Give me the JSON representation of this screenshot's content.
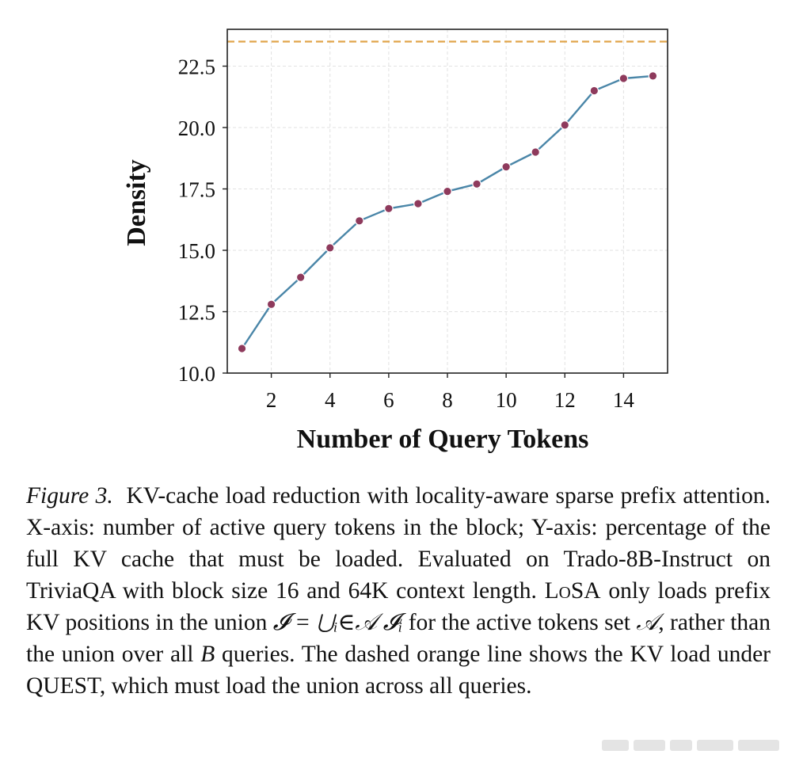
{
  "chart_data": {
    "type": "line",
    "title": "",
    "xlabel": "Number of Query Tokens",
    "ylabel": "Density",
    "xlim": [
      0.5,
      15.5
    ],
    "ylim": [
      10.0,
      24.0
    ],
    "xticks": [
      2,
      4,
      6,
      8,
      10,
      12,
      14
    ],
    "xtick_labels": [
      "2",
      "4",
      "6",
      "8",
      "10",
      "12",
      "14"
    ],
    "yticks": [
      10.0,
      12.5,
      15.0,
      17.5,
      20.0,
      22.5
    ],
    "ytick_labels": [
      "10.0",
      "12.5",
      "15.0",
      "17.5",
      "20.0",
      "22.5"
    ],
    "grid": true,
    "series": [
      {
        "name": "LoSA",
        "x": [
          1,
          2,
          3,
          4,
          5,
          6,
          7,
          8,
          9,
          10,
          11,
          12,
          13,
          14,
          15
        ],
        "values": [
          11.0,
          12.8,
          13.9,
          15.1,
          16.2,
          16.7,
          16.9,
          17.4,
          17.7,
          18.4,
          19.0,
          20.1,
          21.5,
          22.0,
          22.1
        ],
        "line_color": "#4a86a8",
        "marker_color": "#8e3a5c"
      }
    ],
    "reference_lines": [
      {
        "name": "QUEST",
        "y": 23.5,
        "style": "dashed",
        "color": "#e0a54a"
      }
    ]
  },
  "caption": {
    "label": "Figure 3.",
    "text_1": "KV-cache load reduction with locality-aware sparse prefix attention. X-axis: number of active query tokens in the block; Y-axis: percentage of the full KV cache that must be loaded. Evaluated on Trado-8B-Instruct on TriviaQA with block size 16 and 64K context length.",
    "method_name": "LoSA",
    "text_2": "only loads prefix KV positions in the union",
    "math_union": "𝓘 = ⋃ᵢ∈𝒜 𝓘ᵢ",
    "text_3": "for the active tokens set",
    "math_set": "𝒜",
    "text_4": ", rather than the union over all",
    "math_b": "B",
    "text_5": "queries. The dashed orange line shows the KV load under QUEST, which must load the union across all queries."
  }
}
